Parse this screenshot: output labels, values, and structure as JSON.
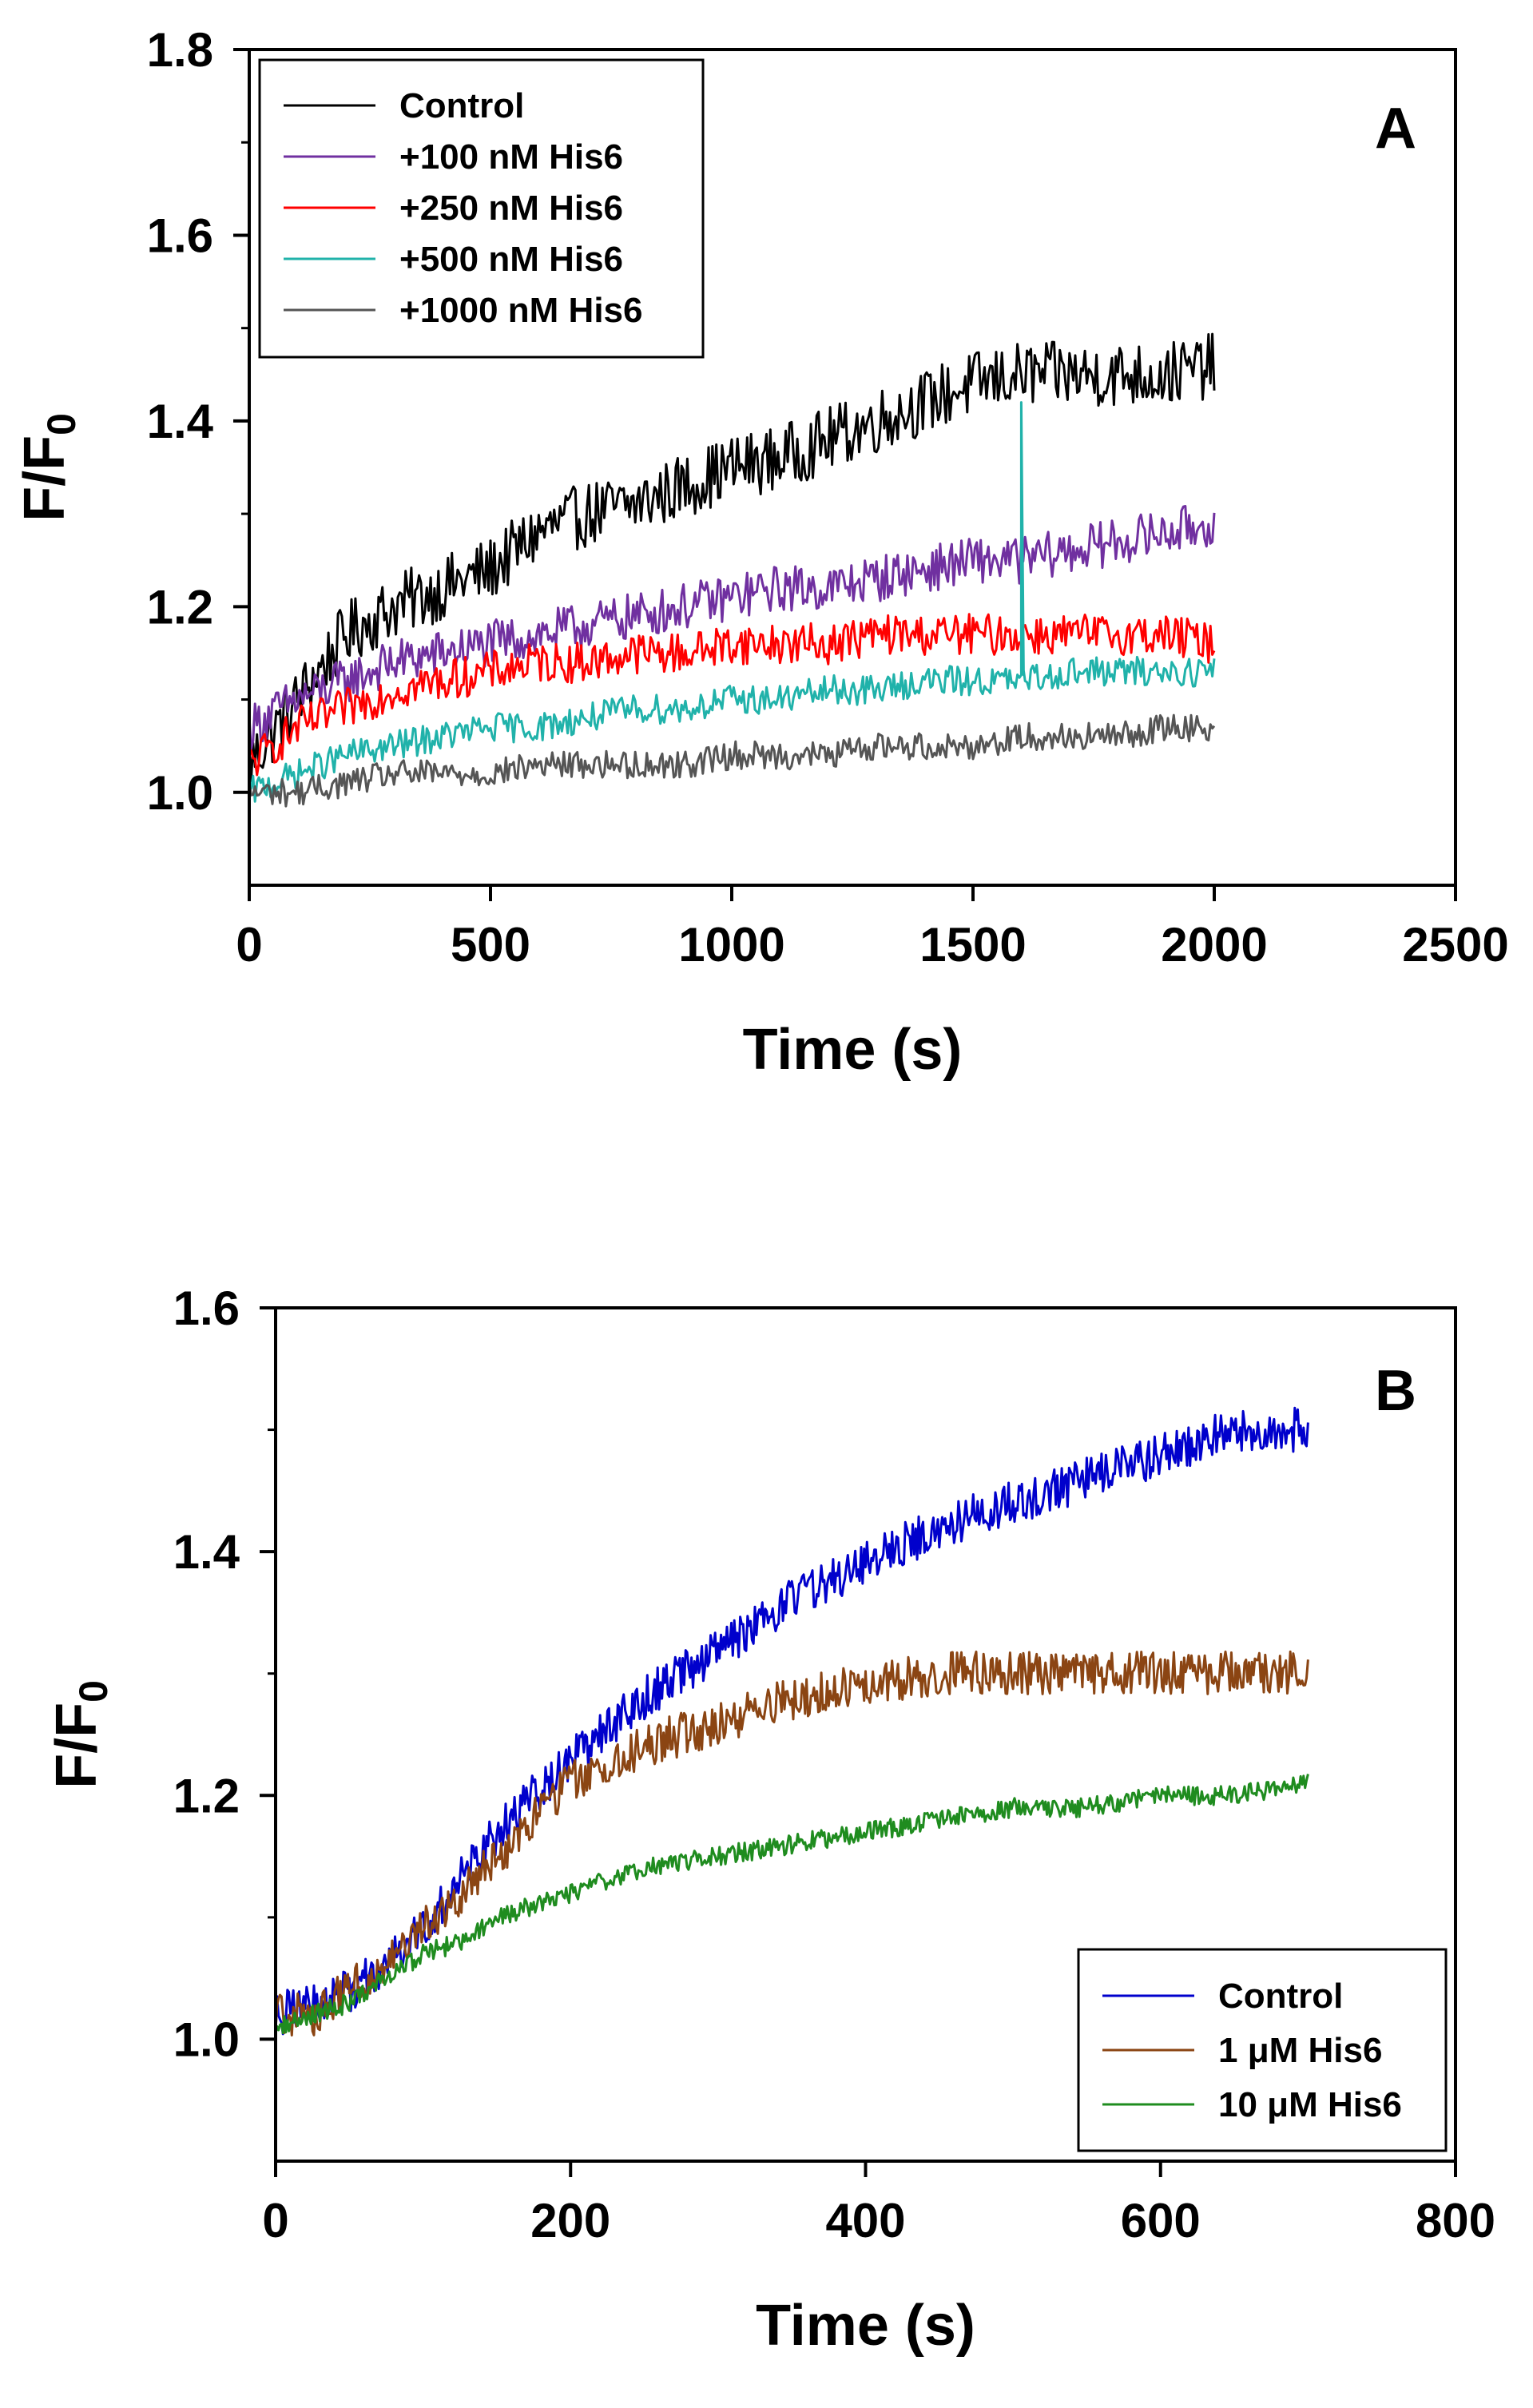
{
  "figure": {
    "panels": [
      "A",
      "B"
    ]
  },
  "chart_data": [
    {
      "type": "line",
      "panel_label": "A",
      "title": "",
      "xlabel": "Time (s)",
      "ylabel": "F/F",
      "ylabel_sub": "0",
      "xlim": [
        0,
        2500
      ],
      "ylim": [
        0.9,
        1.8
      ],
      "xticks": [
        0,
        500,
        1000,
        1500,
        2000,
        2500
      ],
      "yticks": [
        1.0,
        1.2,
        1.4,
        1.6,
        1.8
      ],
      "xtick_labels": [
        "0",
        "500",
        "1000",
        "1500",
        "2000",
        "2500"
      ],
      "ytick_labels": [
        "1.0",
        "1.2",
        "1.4",
        "1.6",
        "1.8"
      ],
      "legend_position": "top-left",
      "x": [
        0,
        100,
        200,
        300,
        400,
        500,
        600,
        700,
        800,
        900,
        1000,
        1100,
        1200,
        1300,
        1400,
        1500,
        1600,
        1700,
        1800,
        1900,
        2000
      ],
      "series": [
        {
          "name": "Control",
          "color": "#000000",
          "noise": 0.035,
          "values": [
            1.03,
            1.1,
            1.17,
            1.2,
            1.22,
            1.24,
            1.28,
            1.3,
            1.31,
            1.33,
            1.35,
            1.36,
            1.38,
            1.4,
            1.42,
            1.44,
            1.45,
            1.45,
            1.45,
            1.45,
            1.46
          ]
        },
        {
          "name": "+100 nM His6",
          "color": "#7030a0",
          "noise": 0.025,
          "values": [
            1.07,
            1.1,
            1.12,
            1.14,
            1.15,
            1.16,
            1.17,
            1.18,
            1.19,
            1.2,
            1.21,
            1.22,
            1.22,
            1.23,
            1.24,
            1.25,
            1.25,
            1.26,
            1.27,
            1.28,
            1.29
          ]
        },
        {
          "name": "+250 nM His6",
          "color": "#ff0000",
          "noise": 0.022,
          "values": [
            1.03,
            1.07,
            1.09,
            1.11,
            1.12,
            1.13,
            1.14,
            1.14,
            1.15,
            1.15,
            1.16,
            1.16,
            1.16,
            1.17,
            1.17,
            1.17,
            1.17,
            1.17,
            1.17,
            1.17,
            1.16
          ]
        },
        {
          "name": "+500 nM His6",
          "color": "#20b2aa",
          "noise": 0.016,
          "spike_at": 1600,
          "spike_to": 1.42,
          "values": [
            1.0,
            1.02,
            1.04,
            1.05,
            1.06,
            1.07,
            1.07,
            1.08,
            1.09,
            1.09,
            1.1,
            1.1,
            1.11,
            1.11,
            1.12,
            1.12,
            1.12,
            1.13,
            1.13,
            1.13,
            1.13
          ]
        },
        {
          "name": "+1000 nM His6",
          "color": "#555555",
          "noise": 0.015,
          "values": [
            1.0,
            1.0,
            1.01,
            1.02,
            1.02,
            1.02,
            1.03,
            1.03,
            1.03,
            1.03,
            1.04,
            1.04,
            1.04,
            1.05,
            1.05,
            1.05,
            1.06,
            1.06,
            1.06,
            1.07,
            1.07
          ]
        }
      ]
    },
    {
      "type": "line",
      "panel_label": "B",
      "title": "",
      "xlabel": "Time (s)",
      "ylabel": "F/F",
      "ylabel_sub": "0",
      "xlim": [
        0,
        800
      ],
      "ylim": [
        0.9,
        1.6
      ],
      "xticks": [
        0,
        200,
        400,
        600,
        800
      ],
      "yticks": [
        1.0,
        1.2,
        1.4,
        1.6
      ],
      "xtick_labels": [
        "0",
        "200",
        "400",
        "600",
        "800"
      ],
      "ytick_labels": [
        "1.0",
        "1.2",
        "1.4",
        "1.6"
      ],
      "legend_position": "bottom-right",
      "x": [
        0,
        25,
        50,
        75,
        100,
        125,
        150,
        175,
        200,
        250,
        300,
        350,
        400,
        450,
        500,
        550,
        600,
        650,
        700
      ],
      "series": [
        {
          "name": "Control",
          "color": "#0000cc",
          "noise": 0.018,
          "values": [
            1.02,
            1.03,
            1.04,
            1.06,
            1.09,
            1.13,
            1.17,
            1.2,
            1.23,
            1.28,
            1.32,
            1.36,
            1.39,
            1.42,
            1.44,
            1.46,
            1.48,
            1.5,
            1.5
          ]
        },
        {
          "name": "1 μM His6",
          "color": "#8b4513",
          "noise": 0.018,
          "values": [
            1.02,
            1.02,
            1.04,
            1.06,
            1.09,
            1.12,
            1.15,
            1.18,
            1.21,
            1.24,
            1.26,
            1.28,
            1.29,
            1.3,
            1.3,
            1.3,
            1.3,
            1.3,
            1.3
          ]
        },
        {
          "name": "10 μM His6",
          "color": "#1f8c1f",
          "noise": 0.008,
          "values": [
            1.01,
            1.02,
            1.03,
            1.05,
            1.07,
            1.08,
            1.1,
            1.11,
            1.12,
            1.14,
            1.15,
            1.16,
            1.17,
            1.18,
            1.19,
            1.19,
            1.2,
            1.2,
            1.21
          ]
        }
      ]
    }
  ]
}
